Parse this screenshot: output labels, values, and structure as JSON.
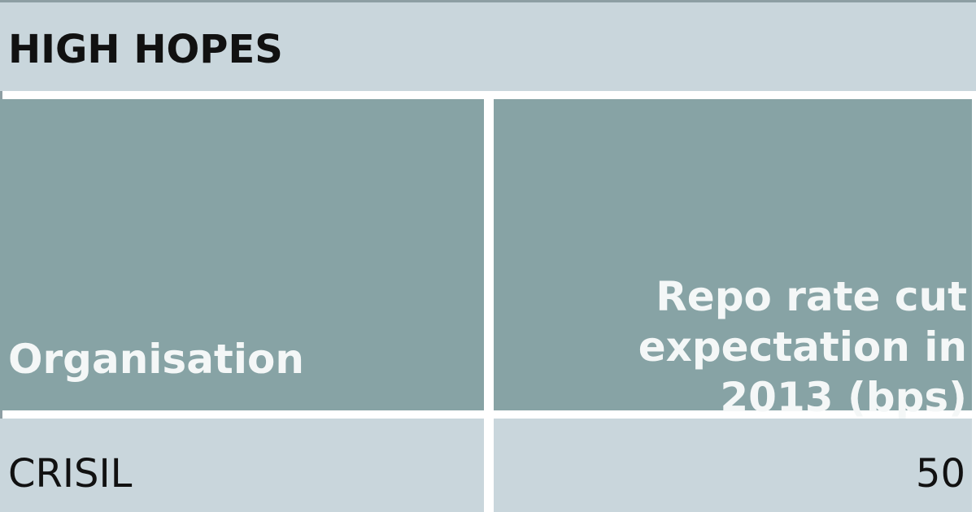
{
  "title": "HIGH HOPES",
  "table": {
    "headers": [
      "Organisation",
      "Repo rate cut expectation in 2013 (bps)"
    ],
    "rows": [
      [
        "CRISIL",
        "50"
      ]
    ]
  },
  "colors": {
    "title_bg": "#c9d6dc",
    "header_bg": "#87a3a5",
    "row_bg": "#c9d6dc",
    "header_text": "#f4f7f7"
  }
}
